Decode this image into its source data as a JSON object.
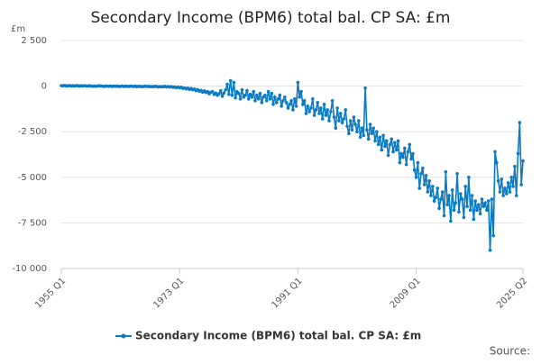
{
  "chart_data": {
    "type": "line",
    "title": "Secondary Income (BPM6) total bal. CP SA: £m",
    "y_unit": "£m",
    "source": "Source:",
    "categories": [
      "1955 Q1",
      null,
      null,
      null,
      null,
      null,
      null,
      null,
      null,
      null,
      null,
      null,
      null,
      null,
      null,
      null,
      null,
      null,
      null,
      null,
      null,
      null,
      null,
      null,
      null,
      null,
      null,
      null,
      null,
      null,
      null,
      null,
      null,
      null,
      null,
      null,
      null,
      null,
      null,
      null,
      null,
      null,
      null,
      null,
      null,
      null,
      null,
      null,
      null,
      null,
      null,
      null,
      null,
      null,
      null,
      null,
      null,
      null,
      null,
      null,
      null,
      null,
      null,
      null,
      null,
      null,
      null,
      null,
      null,
      null,
      null,
      null,
      "1973 Q1",
      null,
      null,
      null,
      null,
      null,
      null,
      null,
      null,
      null,
      null,
      null,
      null,
      null,
      null,
      null,
      null,
      null,
      null,
      null,
      null,
      null,
      null,
      null,
      null,
      null,
      null,
      null,
      null,
      null,
      null,
      null,
      null,
      null,
      null,
      null,
      null,
      null,
      null,
      null,
      null,
      null,
      null,
      null,
      null,
      null,
      null,
      null,
      null,
      null,
      null,
      null,
      null,
      null,
      null,
      null,
      null,
      null,
      null,
      null,
      null,
      null,
      null,
      null,
      null,
      null,
      null,
      null,
      null,
      null,
      null,
      null,
      "1991 Q1",
      null,
      null,
      null,
      null,
      null,
      null,
      null,
      null,
      null,
      null,
      null,
      null,
      null,
      null,
      null,
      null,
      null,
      null,
      null,
      null,
      null,
      null,
      null,
      null,
      null,
      null,
      null,
      null,
      null,
      null,
      null,
      null,
      null,
      null,
      null,
      null,
      null,
      null,
      null,
      null,
      null,
      null,
      null,
      null,
      null,
      null,
      null,
      null,
      null,
      null,
      null,
      null,
      null,
      null,
      null,
      null,
      null,
      null,
      null,
      null,
      null,
      null,
      null,
      null,
      null,
      null,
      null,
      null,
      null,
      null,
      null,
      "2009 Q1",
      null,
      null,
      null,
      null,
      null,
      null,
      null,
      null,
      null,
      null,
      null,
      null,
      null,
      null,
      null,
      null,
      null,
      null,
      null,
      null,
      null,
      null,
      null,
      null,
      null,
      null,
      null,
      null,
      null,
      null,
      null,
      null,
      null,
      null,
      null,
      null,
      null,
      null,
      null,
      null,
      null,
      null,
      null,
      null,
      null,
      null,
      null,
      null,
      null,
      null,
      null,
      null,
      null,
      null,
      null,
      null,
      null,
      null,
      null,
      null,
      null,
      null,
      null,
      null,
      "2025 Q2"
    ],
    "series": [
      {
        "name": "Secondary Income (BPM6) total bal. CP SA: £m",
        "color": "#0a7ac2",
        "values": [
          30,
          20,
          40,
          10,
          20,
          30,
          10,
          20,
          10,
          30,
          20,
          0,
          20,
          10,
          30,
          10,
          0,
          20,
          10,
          -10,
          10,
          -10,
          0,
          20,
          10,
          0,
          -20,
          10,
          0,
          -10,
          10,
          -20,
          10,
          -10,
          0,
          -20,
          -10,
          10,
          -20,
          0,
          -10,
          -20,
          0,
          -10,
          -20,
          0,
          -30,
          -10,
          -10,
          -30,
          -20,
          0,
          -20,
          -10,
          -30,
          -20,
          -30,
          -10,
          -20,
          -40,
          -20,
          -40,
          -30,
          -10,
          -40,
          -20,
          -50,
          -30,
          -60,
          -40,
          -80,
          -50,
          -90,
          -60,
          -120,
          -100,
          -150,
          -110,
          -180,
          -130,
          -200,
          -160,
          -250,
          -190,
          -280,
          -230,
          -330,
          -260,
          -350,
          -300,
          -420,
          -330,
          -300,
          -450,
          -380,
          -500,
          -420,
          -250,
          -550,
          -380,
          -200,
          100,
          -450,
          300,
          -500,
          200,
          -650,
          -300,
          -400,
          -700,
          -200,
          -600,
          -500,
          -250,
          -700,
          -450,
          -600,
          -300,
          -800,
          -500,
          -700,
          -400,
          -900,
          -600,
          -500,
          -800,
          -300,
          -700,
          -400,
          -1000,
          -600,
          -900,
          -700,
          -500,
          -1100,
          -800,
          -600,
          -900,
          -1200,
          -1000,
          -800,
          -1300,
          -700,
          -1100,
          200,
          -600,
          -300,
          -1000,
          -800,
          -1500,
          -1100,
          -1400,
          -1200,
          -700,
          -1600,
          -1300,
          -900,
          -1500,
          -1200,
          -1800,
          -1000,
          -1600,
          -1300,
          -1900,
          -1400,
          -800,
          -1700,
          -2300,
          -1200,
          -1900,
          -1500,
          -2000,
          -1800,
          -1300,
          -2200,
          -2600,
          -1900,
          -2400,
          -1700,
          -2100,
          -2500,
          -1900,
          -2800,
          -2300,
          -2700,
          -100,
          -2400,
          -2900,
          -2100,
          -2600,
          -2300,
          -3000,
          -2500,
          -3200,
          -2800,
          -3500,
          -2700,
          -3300,
          -3000,
          -3800,
          -3200,
          -2900,
          -3600,
          -3100,
          -3500,
          -3000,
          -4200,
          -3700,
          -3900,
          -3400,
          -4300,
          -3600,
          -3200,
          -4000,
          -3700,
          -4600,
          -5000,
          -4200,
          -5600,
          -4800,
          -4500,
          -5400,
          -4900,
          -5800,
          -5200,
          -6000,
          -5500,
          -6300,
          -6100,
          -5600,
          -6700,
          -6200,
          -5800,
          -7100,
          -4700,
          -6500,
          -6000,
          -7400,
          -5700,
          -6800,
          -6400,
          -4800,
          -6900,
          -5900,
          -6200,
          -7200,
          -5500,
          -6600,
          -5000,
          -6800,
          -6000,
          -7300,
          -6300,
          -6800,
          -6500,
          -7000,
          -6200,
          -6600,
          -6400,
          -6800,
          -6300,
          -9000,
          -6200,
          -8200,
          -3600,
          -4200,
          -5200,
          -5800,
          -5100,
          -6000,
          -5600,
          -5900,
          -5300,
          -5800,
          -5000,
          -5500,
          -4400,
          -6000,
          -3700,
          -2000,
          -5400,
          -4100
        ]
      }
    ],
    "ylim": [
      -10000,
      2500
    ],
    "yticks": [
      {
        "value": -10000,
        "label": "-10 000"
      },
      {
        "value": -7500,
        "label": "-7 500"
      },
      {
        "value": -5000,
        "label": "-5 000"
      },
      {
        "value": -2500,
        "label": "-2 500"
      },
      0,
      {
        "value": 2500,
        "label": "2 500"
      }
    ],
    "grid": true,
    "legend": "bottom"
  }
}
